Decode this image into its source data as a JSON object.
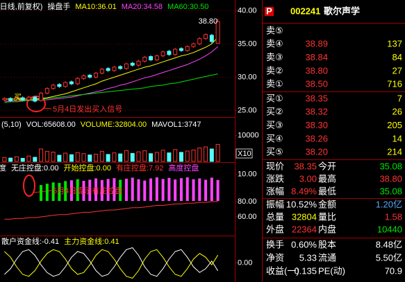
{
  "chart_data": [
    {
      "type": "candlestick",
      "title": "(日线,前复权)",
      "indicator": "操盘手",
      "open": [
        26.6,
        26.8,
        26.5,
        26.9,
        26.6,
        27.0,
        26.5,
        27.6,
        28.3,
        28.9,
        28.6,
        29.3,
        29.0,
        29.8,
        30.3,
        30.0,
        30.6,
        31.3,
        31.0,
        31.6,
        31.3,
        32.1,
        31.8,
        32.4,
        33.1,
        32.6,
        33.2,
        33.9,
        33.4,
        34.3,
        34.0,
        34.6,
        35.0,
        35.8,
        36.3,
        35.08
      ],
      "high": [
        27.0,
        27.0,
        27.1,
        27.1,
        27.2,
        27.2,
        27.8,
        28.5,
        29.0,
        29.1,
        29.4,
        29.5,
        30.0,
        30.4,
        30.5,
        30.8,
        31.4,
        31.5,
        31.7,
        31.8,
        32.2,
        32.3,
        32.6,
        33.2,
        33.3,
        33.4,
        34.0,
        34.1,
        34.4,
        34.5,
        34.8,
        35.2,
        36.0,
        36.6,
        36.5,
        38.8
      ],
      "low": [
        26.4,
        26.3,
        26.3,
        26.4,
        26.4,
        26.2,
        26.3,
        27.4,
        28.1,
        28.4,
        28.4,
        28.8,
        28.8,
        29.6,
        29.8,
        29.8,
        30.4,
        30.8,
        30.8,
        31.1,
        31.1,
        31.6,
        31.6,
        32.2,
        32.4,
        32.4,
        33.0,
        33.2,
        33.2,
        33.8,
        33.8,
        34.4,
        34.8,
        35.6,
        35.1,
        35.08
      ],
      "close": [
        26.8,
        26.5,
        26.9,
        26.6,
        27.0,
        26.4,
        27.6,
        28.3,
        28.8,
        28.6,
        29.2,
        29.0,
        29.8,
        30.2,
        30.0,
        30.6,
        31.2,
        31.0,
        31.5,
        31.3,
        32.0,
        31.8,
        32.4,
        33.0,
        32.6,
        33.2,
        33.8,
        33.4,
        34.2,
        34.0,
        34.6,
        35.0,
        35.8,
        36.4,
        35.35,
        38.35
      ],
      "up_color": "#ff3232",
      "down_color": "#54fcfc",
      "series": [
        {
          "name": "MA10:36.01",
          "color": "#ffff00",
          "values": [
            26.7,
            26.7,
            26.7,
            26.7,
            26.7,
            26.7,
            26.8,
            26.9,
            27.1,
            27.3,
            27.5,
            27.8,
            28.1,
            28.4,
            28.7,
            29.0,
            29.4,
            29.7,
            30.0,
            30.3,
            30.6,
            30.9,
            31.2,
            31.5,
            31.7,
            32.0,
            32.3,
            32.6,
            32.9,
            33.2,
            33.4,
            33.7,
            34.1,
            34.5,
            35.0,
            36.01
          ]
        },
        {
          "name": "MA20:34.58",
          "color": "#ff44ff",
          "values": [
            26.4,
            26.4,
            26.5,
            26.5,
            26.5,
            26.5,
            26.6,
            26.6,
            26.7,
            26.8,
            26.9,
            27.0,
            27.2,
            27.4,
            27.6,
            27.8,
            28.0,
            28.3,
            28.5,
            28.8,
            29.0,
            29.3,
            29.6,
            29.9,
            30.1,
            30.4,
            30.7,
            31.0,
            31.3,
            31.6,
            31.9,
            32.3,
            32.7,
            33.2,
            33.8,
            34.58
          ]
        },
        {
          "name": "MA60:30.50",
          "color": "#00e600",
          "values": [
            26.2,
            26.3,
            26.3,
            26.4,
            26.5,
            26.6,
            26.7,
            26.8,
            26.9,
            27.0,
            27.1,
            27.2,
            27.3,
            27.4,
            27.5,
            27.6,
            27.7,
            27.8,
            27.9,
            28.0,
            28.1,
            28.2,
            28.3,
            28.4,
            28.6,
            28.7,
            28.8,
            29.0,
            29.1,
            29.3,
            29.5,
            29.7,
            29.9,
            30.1,
            30.3,
            30.5
          ]
        }
      ],
      "ylim": [
        24.1,
        41.6
      ],
      "yticks": [
        {
          "value": 25,
          "label": "25.00"
        },
        {
          "value": 30,
          "label": "30.00"
        },
        {
          "value": 35,
          "label": "35.00"
        },
        {
          "value": 40,
          "label": "40.00"
        }
      ],
      "grid": true,
      "annotations": [
        "38.80",
        "买",
        "5月4日发出买入信号"
      ]
    },
    {
      "type": "volume",
      "header": [
        {
          "text": "(5,10)",
          "color": "#ffffff"
        },
        {
          "text": "VOL:65608.00",
          "color": "#ffffff"
        },
        {
          "text": "VOLUME:32804.00",
          "color": "#ffff00"
        },
        {
          "text": "MAVOL1:3747",
          "color": "#ffffff"
        }
      ],
      "values": [
        1500,
        1300,
        1800,
        1200,
        2100,
        1600,
        4800,
        3900,
        3600,
        2400,
        3200,
        2600,
        3400,
        3000,
        2500,
        2800,
        3900,
        2700,
        3300,
        2900,
        4200,
        3100,
        3700,
        4100,
        3000,
        3500,
        4300,
        3300,
        4600,
        3500,
        4000,
        4400,
        5200,
        5600,
        4800,
        6560.8
      ],
      "ylim": [
        0,
        16800
      ],
      "yticks": [
        10000
      ],
      "multiplier_label": "X10"
    },
    {
      "type": "bar",
      "header": [
        {
          "text": "度",
          "color": "#ffffff"
        },
        {
          "text": "无庄控盘:0.00",
          "color": "#ffffff"
        },
        {
          "text": "开始控盘:0.00",
          "color": "#ffff00"
        },
        {
          "text": "有庄控盘:7.92",
          "color": "#ff3232"
        },
        {
          "text": "高度控盘",
          "color": "#ff44ff"
        }
      ],
      "values": [
        null,
        null,
        null,
        null,
        null,
        null,
        6.0,
        6.5,
        7.0,
        6.8,
        7.5,
        7.8,
        8.2,
        7.6,
        8.0,
        8.5,
        7.9,
        8.3,
        8.6,
        8.0,
        8.4,
        8.8,
        8.2,
        7.7,
        8.5,
        8.9,
        8.3,
        8.7,
        8.1,
        8.6,
        8.9,
        8.2,
        8.5,
        8.0,
        8.8,
        7.92
      ],
      "colors": [
        null,
        null,
        null,
        null,
        null,
        null,
        "#00e600",
        "#00e600",
        "#00e600",
        "#00e600",
        "#00e600",
        "#ff44ff",
        "#00e600",
        "#ff44ff",
        "#ff44ff",
        "#ff44ff",
        "#ff44ff",
        "#ff44ff",
        "#ff44ff",
        "#00e600",
        "#ff44ff",
        "#ff44ff",
        "#ff44ff",
        "#ff44ff",
        "#ff44ff",
        "#ff44ff",
        "#ff44ff",
        "#ff44ff",
        "#ff44ff",
        "#ff44ff",
        "#ff44ff",
        "#ff44ff",
        "#ff44ff",
        "#ff44ff",
        "#ff44ff",
        "#ff44ff"
      ],
      "ylim": [
        0,
        14.4
      ],
      "yticks": [
        {
          "value": 10,
          "label": "10.00"
        }
      ],
      "annotations": [
        "5月4日提示有庄控盘"
      ]
    },
    {
      "type": "line",
      "color": "#ff3232",
      "values": [
        57,
        57,
        58,
        58,
        59,
        59,
        60,
        61,
        62,
        63,
        63,
        64,
        65,
        66,
        66,
        67,
        68,
        69,
        69,
        70,
        71,
        72,
        72,
        73,
        74,
        75,
        75,
        76,
        77,
        77,
        78,
        78,
        79,
        79,
        80,
        80
      ],
      "ylim": [
        41.8,
        82.7
      ],
      "yticks": [
        {
          "value": 80,
          "label": "80.00"
        },
        {
          "value": 60,
          "label": "60.00"
        }
      ]
    },
    {
      "type": "line",
      "series": [
        {
          "name": "散户资金线:-0.41",
          "color": "#ffffff",
          "values": [
            -0.6,
            -0.3,
            0.2,
            0.6,
            0.7,
            0.4,
            -0.1,
            -0.5,
            -0.7,
            -0.6,
            -0.2,
            0.3,
            0.6,
            0.5,
            0.1,
            -0.4,
            -0.7,
            -0.6,
            -0.2,
            0.3,
            0.7,
            0.8,
            0.4,
            -0.2,
            -0.6,
            -0.7,
            -0.3,
            0.2,
            0.6,
            0.7,
            0.3,
            -0.2,
            -0.5,
            -0.3,
            0.1,
            -0.41
          ]
        },
        {
          "name": "主力资金线:0.41",
          "color": "#ffff00",
          "values": [
            0.6,
            0.3,
            -0.2,
            -0.6,
            -0.7,
            -0.4,
            0.1,
            0.5,
            0.7,
            0.6,
            0.2,
            -0.3,
            -0.6,
            -0.5,
            -0.1,
            0.4,
            0.7,
            0.6,
            0.2,
            -0.3,
            -0.7,
            -0.8,
            -0.4,
            0.2,
            0.6,
            0.7,
            0.3,
            -0.2,
            -0.6,
            -0.7,
            -0.3,
            0.2,
            0.5,
            0.3,
            -0.1,
            0.41
          ]
        }
      ],
      "ylim": [
        -1,
        1
      ],
      "yticks": [
        {
          "value": 0,
          "label": "0.00"
        }
      ]
    }
  ],
  "quote_panel": {
    "badge": "P",
    "code": "002241",
    "name": "歌尔声学",
    "asks": [
      {
        "label": "卖⑤"
      },
      {
        "label": "卖④",
        "price": "38.89",
        "volume": "137"
      },
      {
        "label": "卖③",
        "price": "38.84",
        "volume": "84"
      },
      {
        "label": "卖②",
        "price": "38.80",
        "volume": "27"
      },
      {
        "label": "卖①",
        "price": "38.50",
        "volume": "716"
      }
    ],
    "bids": [
      {
        "label": "买①",
        "price": "38.35",
        "volume": "7"
      },
      {
        "label": "买②",
        "price": "38.32",
        "volume": "26"
      },
      {
        "label": "买③",
        "price": "38.30",
        "volume": "205"
      },
      {
        "label": "买④",
        "price": "38.26",
        "volume": "14"
      },
      {
        "label": "买⑤",
        "price": "38.20",
        "volume": "214"
      }
    ],
    "price_color": "#ff3232",
    "volume_color": "#ffff00",
    "stats": [
      [
        "现价",
        "38.35",
        "今开",
        "35.08"
      ],
      [
        "涨跌",
        "3.00",
        "最高",
        "38.80"
      ],
      [
        "涨幅",
        "8.49%",
        "最低",
        "35.08"
      ],
      [
        "振幅",
        "10.52%",
        "金额",
        "1.20亿"
      ],
      [
        "总量",
        "32804",
        "量比",
        "1.58"
      ],
      [
        "外盘",
        "22364",
        "内盘",
        "10440"
      ],
      [
        "换手",
        "0.60%",
        "股本",
        "8.48亿"
      ],
      [
        "净资",
        "5.33",
        "流通",
        "5.50亿"
      ],
      [
        "收益(一)",
        "0.135",
        "PE(动)",
        "70.9"
      ]
    ],
    "stat_colors": [
      [
        "#ff3232",
        "#00e600"
      ],
      [
        "#ff3232",
        "#ff3232"
      ],
      [
        "#ff3232",
        "#00e600"
      ],
      [
        "#ffffff",
        "#54a8fc"
      ],
      [
        "#ffff00",
        "#ff3232"
      ],
      [
        "#ff3232",
        "#00e600"
      ],
      [
        "#ffffff",
        "#ffffff"
      ],
      [
        "#ffffff",
        "#ffffff"
      ],
      [
        "#ffffff",
        "#ffffff"
      ]
    ]
  }
}
